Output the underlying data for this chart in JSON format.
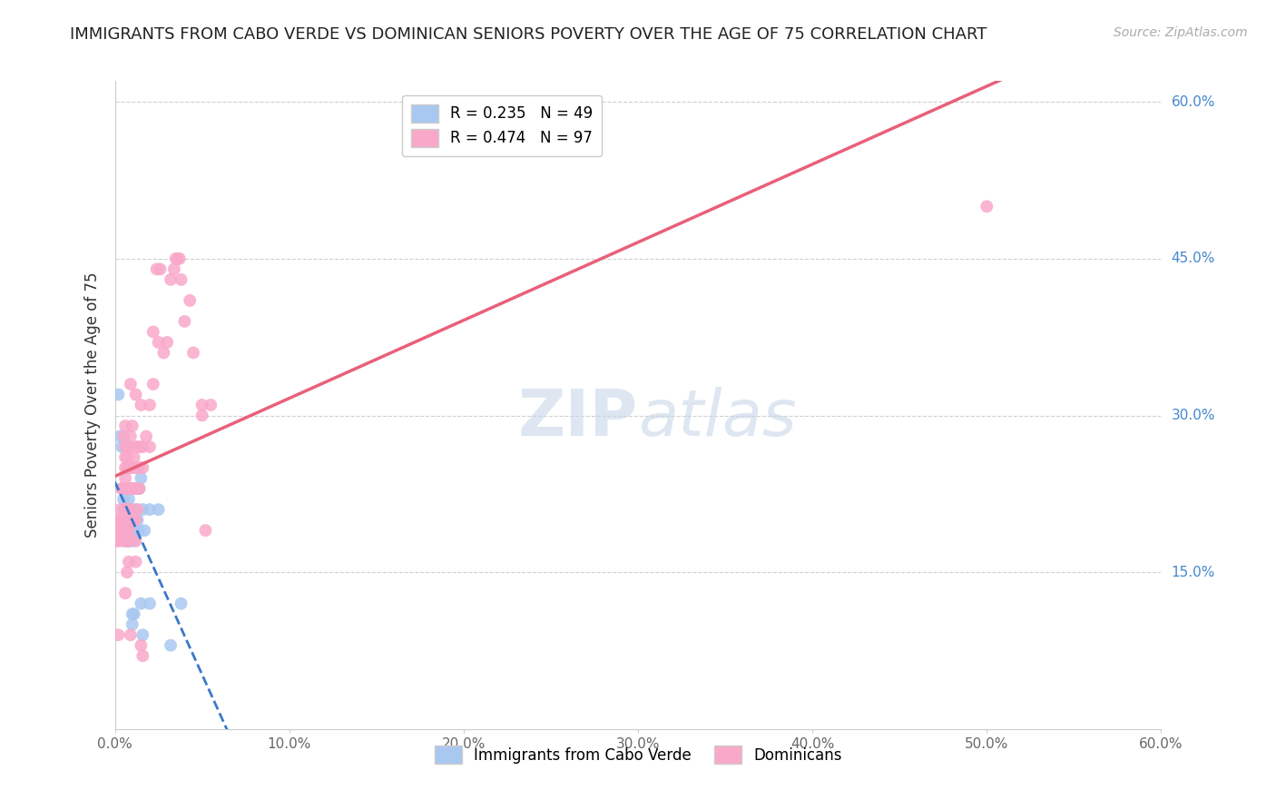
{
  "title": "IMMIGRANTS FROM CABO VERDE VS DOMINICAN SENIORS POVERTY OVER THE AGE OF 75 CORRELATION CHART",
  "source": "Source: ZipAtlas.com",
  "ylabel": "Seniors Poverty Over the Age of 75",
  "cabo_verde_R": 0.235,
  "cabo_verde_N": 49,
  "dominican_R": 0.474,
  "dominican_N": 97,
  "watermark": "ZIPAtlas",
  "cabo_verde_color": "#a8c8f0",
  "dominican_color": "#f9a8c9",
  "cabo_verde_line_color": "#3a78c9",
  "dominican_line_color": "#e8607a",
  "cabo_verde_scatter": [
    [
      0.2,
      32.0
    ],
    [
      0.3,
      28.0
    ],
    [
      0.4,
      27.0
    ],
    [
      0.4,
      23.0
    ],
    [
      0.5,
      22.0
    ],
    [
      0.5,
      19.0
    ],
    [
      0.6,
      21.0
    ],
    [
      0.6,
      19.0
    ],
    [
      0.6,
      18.0
    ],
    [
      0.7,
      25.0
    ],
    [
      0.7,
      21.0
    ],
    [
      0.7,
      20.0
    ],
    [
      0.7,
      18.0
    ],
    [
      0.8,
      22.0
    ],
    [
      0.8,
      20.0
    ],
    [
      0.8,
      19.0
    ],
    [
      0.8,
      18.0
    ],
    [
      0.9,
      25.0
    ],
    [
      0.9,
      21.0
    ],
    [
      0.9,
      20.0
    ],
    [
      0.9,
      19.0
    ],
    [
      0.9,
      18.0
    ],
    [
      1.0,
      23.0
    ],
    [
      1.0,
      21.0
    ],
    [
      1.0,
      20.0
    ],
    [
      1.0,
      19.0
    ],
    [
      1.0,
      11.0
    ],
    [
      1.0,
      10.0
    ],
    [
      1.1,
      20.0
    ],
    [
      1.1,
      19.0
    ],
    [
      1.1,
      18.0
    ],
    [
      1.1,
      11.0
    ],
    [
      1.2,
      23.0
    ],
    [
      1.2,
      21.0
    ],
    [
      1.2,
      20.0
    ],
    [
      1.3,
      23.0
    ],
    [
      1.3,
      20.0
    ],
    [
      1.4,
      23.0
    ],
    [
      1.4,
      19.0
    ],
    [
      1.5,
      24.0
    ],
    [
      1.5,
      12.0
    ],
    [
      1.6,
      21.0
    ],
    [
      1.6,
      9.0
    ],
    [
      1.7,
      19.0
    ],
    [
      2.0,
      21.0
    ],
    [
      2.0,
      12.0
    ],
    [
      2.5,
      21.0
    ],
    [
      3.2,
      8.0
    ],
    [
      3.8,
      12.0
    ]
  ],
  "dominican_scatter": [
    [
      0.1,
      18.0
    ],
    [
      0.2,
      9.0
    ],
    [
      0.2,
      18.0
    ],
    [
      0.2,
      19.0
    ],
    [
      0.3,
      20.0
    ],
    [
      0.3,
      21.0
    ],
    [
      0.3,
      19.0
    ],
    [
      0.4,
      23.0
    ],
    [
      0.4,
      20.0
    ],
    [
      0.4,
      19.0
    ],
    [
      0.4,
      18.0
    ],
    [
      0.5,
      23.0
    ],
    [
      0.5,
      28.0
    ],
    [
      0.5,
      21.0
    ],
    [
      0.5,
      20.0
    ],
    [
      0.5,
      19.0
    ],
    [
      0.6,
      29.0
    ],
    [
      0.6,
      27.0
    ],
    [
      0.6,
      26.0
    ],
    [
      0.6,
      25.0
    ],
    [
      0.6,
      24.0
    ],
    [
      0.6,
      23.0
    ],
    [
      0.6,
      21.0
    ],
    [
      0.6,
      18.0
    ],
    [
      0.6,
      13.0
    ],
    [
      0.7,
      27.0
    ],
    [
      0.7,
      26.0
    ],
    [
      0.7,
      25.0
    ],
    [
      0.7,
      23.0
    ],
    [
      0.7,
      21.0
    ],
    [
      0.7,
      20.0
    ],
    [
      0.7,
      19.0
    ],
    [
      0.7,
      18.0
    ],
    [
      0.7,
      15.0
    ],
    [
      0.8,
      27.0
    ],
    [
      0.8,
      25.0
    ],
    [
      0.8,
      23.0
    ],
    [
      0.8,
      21.0
    ],
    [
      0.8,
      20.0
    ],
    [
      0.8,
      19.0
    ],
    [
      0.8,
      18.0
    ],
    [
      0.8,
      16.0
    ],
    [
      0.9,
      33.0
    ],
    [
      0.9,
      28.0
    ],
    [
      0.9,
      25.0
    ],
    [
      0.9,
      23.0
    ],
    [
      0.9,
      21.0
    ],
    [
      0.9,
      20.0
    ],
    [
      0.9,
      9.0
    ],
    [
      1.0,
      29.0
    ],
    [
      1.0,
      25.0
    ],
    [
      1.0,
      23.0
    ],
    [
      1.0,
      20.0
    ],
    [
      1.1,
      26.0
    ],
    [
      1.1,
      23.0
    ],
    [
      1.1,
      20.0
    ],
    [
      1.2,
      32.0
    ],
    [
      1.2,
      27.0
    ],
    [
      1.2,
      25.0
    ],
    [
      1.2,
      20.0
    ],
    [
      1.2,
      18.0
    ],
    [
      1.2,
      16.0
    ],
    [
      1.3,
      23.0
    ],
    [
      1.3,
      21.0
    ],
    [
      1.4,
      27.0
    ],
    [
      1.4,
      25.0
    ],
    [
      1.4,
      23.0
    ],
    [
      1.5,
      31.0
    ],
    [
      1.5,
      8.0
    ],
    [
      1.6,
      27.0
    ],
    [
      1.6,
      25.0
    ],
    [
      1.6,
      7.0
    ],
    [
      1.8,
      28.0
    ],
    [
      2.0,
      31.0
    ],
    [
      2.0,
      27.0
    ],
    [
      2.2,
      38.0
    ],
    [
      2.2,
      33.0
    ],
    [
      2.4,
      44.0
    ],
    [
      2.5,
      37.0
    ],
    [
      2.6,
      44.0
    ],
    [
      2.8,
      36.0
    ],
    [
      3.0,
      37.0
    ],
    [
      3.2,
      43.0
    ],
    [
      3.4,
      44.0
    ],
    [
      3.5,
      45.0
    ],
    [
      3.6,
      45.0
    ],
    [
      3.7,
      45.0
    ],
    [
      3.8,
      43.0
    ],
    [
      4.0,
      39.0
    ],
    [
      4.3,
      41.0
    ],
    [
      4.5,
      36.0
    ],
    [
      5.0,
      31.0
    ],
    [
      5.0,
      30.0
    ],
    [
      5.2,
      19.0
    ],
    [
      5.5,
      31.0
    ],
    [
      50.0,
      50.0
    ]
  ],
  "xlim": [
    0,
    60.0
  ],
  "ylim": [
    0,
    62.0
  ],
  "ytick_positions": [
    15.0,
    30.0,
    45.0,
    60.0
  ],
  "ytick_labels": [
    "15.0%",
    "30.0%",
    "45.0%",
    "60.0%"
  ],
  "xtick_positions": [
    0,
    10,
    20,
    30,
    40,
    50,
    60
  ],
  "xtick_labels": [
    "0.0%",
    "10.0%",
    "20.0%",
    "30.0%",
    "40.0%",
    "50.0%",
    "60.0%"
  ],
  "background_color": "#ffffff",
  "grid_color": "#d0d0d0",
  "title_fontsize": 13,
  "axis_label_fontsize": 12,
  "tick_fontsize": 11,
  "legend_fontsize": 12,
  "source_fontsize": 10,
  "watermark_color": "#c8d8e8",
  "watermark_fontsize": 52,
  "right_label_color": "#4488cc"
}
